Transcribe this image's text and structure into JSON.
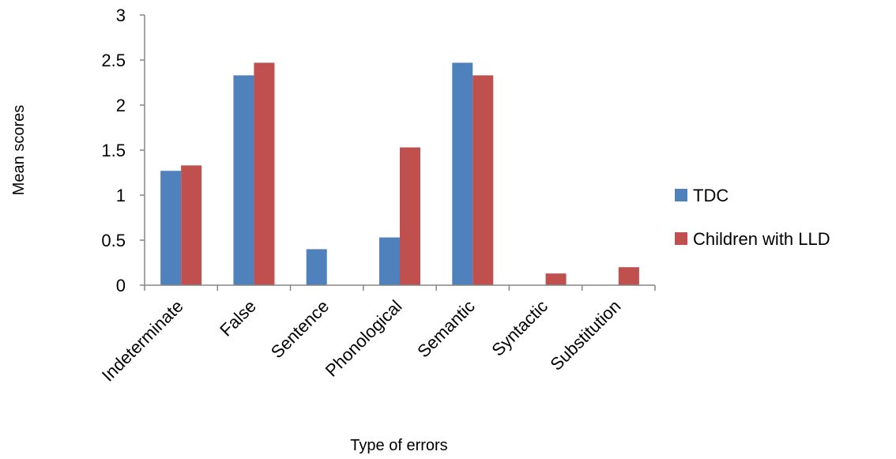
{
  "chart_data": {
    "type": "bar",
    "categories": [
      "Indeterminate",
      "False",
      "Sentence",
      "Phonological",
      "Semantic",
      "Syntactic",
      "Substitution"
    ],
    "series": [
      {
        "name": "TDC",
        "color": "#4f81bd",
        "values": [
          1.27,
          2.33,
          0.4,
          0.53,
          2.47,
          0,
          0
        ]
      },
      {
        "name": "Children with LLD",
        "color": "#c0504d",
        "values": [
          1.33,
          2.47,
          0,
          1.53,
          2.33,
          0.13,
          0.2
        ]
      }
    ],
    "title": "",
    "xlabel": "Type of errors",
    "ylabel": "Mean scores",
    "ylim": [
      0,
      3
    ],
    "yticks": [
      "0",
      "0.5",
      "1",
      "1.5",
      "2",
      "2.5",
      "3"
    ],
    "grid": false,
    "legend_position": "right"
  }
}
